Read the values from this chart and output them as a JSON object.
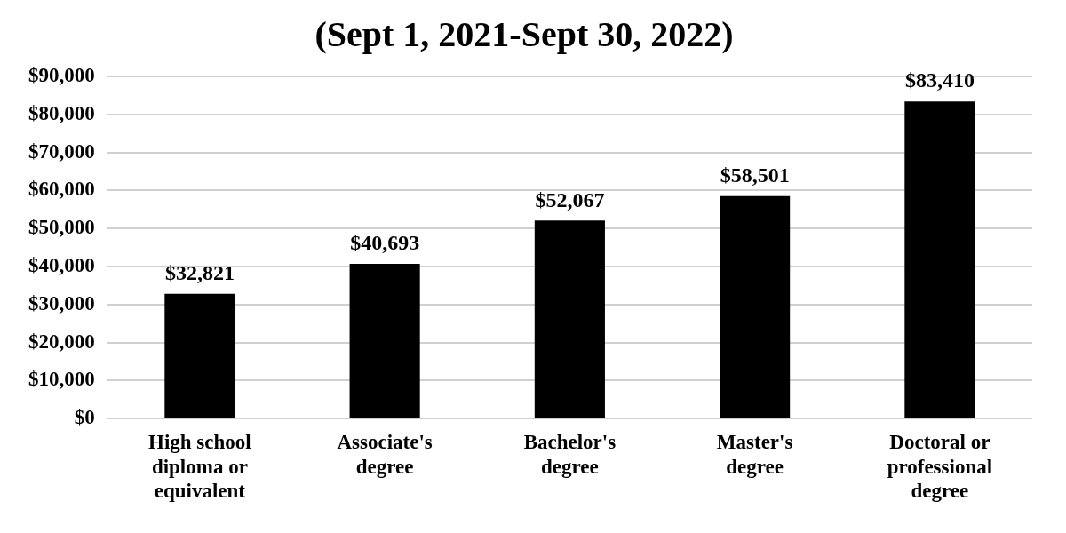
{
  "chart_data": {
    "type": "bar",
    "title": "(Sept 1, 2021-Sept 30, 2022)",
    "categories": [
      "High school diploma or equivalent",
      "Associate's degree",
      "Bachelor's degree",
      "Master's degree",
      "Doctoral or professional degree"
    ],
    "values": [
      32821,
      40693,
      52067,
      58501,
      83410
    ],
    "color": "#000000",
    "ylim": [
      0,
      90000
    ],
    "yticks": [
      {
        "value": 0,
        "label": "$0"
      },
      {
        "value": 10000,
        "label": "$10,000"
      },
      {
        "value": 20000,
        "label": "$20,000"
      },
      {
        "value": 30000,
        "label": "$30,000"
      },
      {
        "value": 40000,
        "label": "$40,000"
      },
      {
        "value": 50000,
        "label": "$50,000"
      },
      {
        "value": 60000,
        "label": "$60,000"
      },
      {
        "value": 70000,
        "label": "$70,000"
      },
      {
        "value": 80000,
        "label": "$80,000"
      },
      {
        "value": 90000,
        "label": "$90,000"
      }
    ],
    "value_labels": [
      "$32,821",
      "$40,693",
      "$52,067",
      "$58,501",
      "$83,410"
    ],
    "grid": "y"
  }
}
